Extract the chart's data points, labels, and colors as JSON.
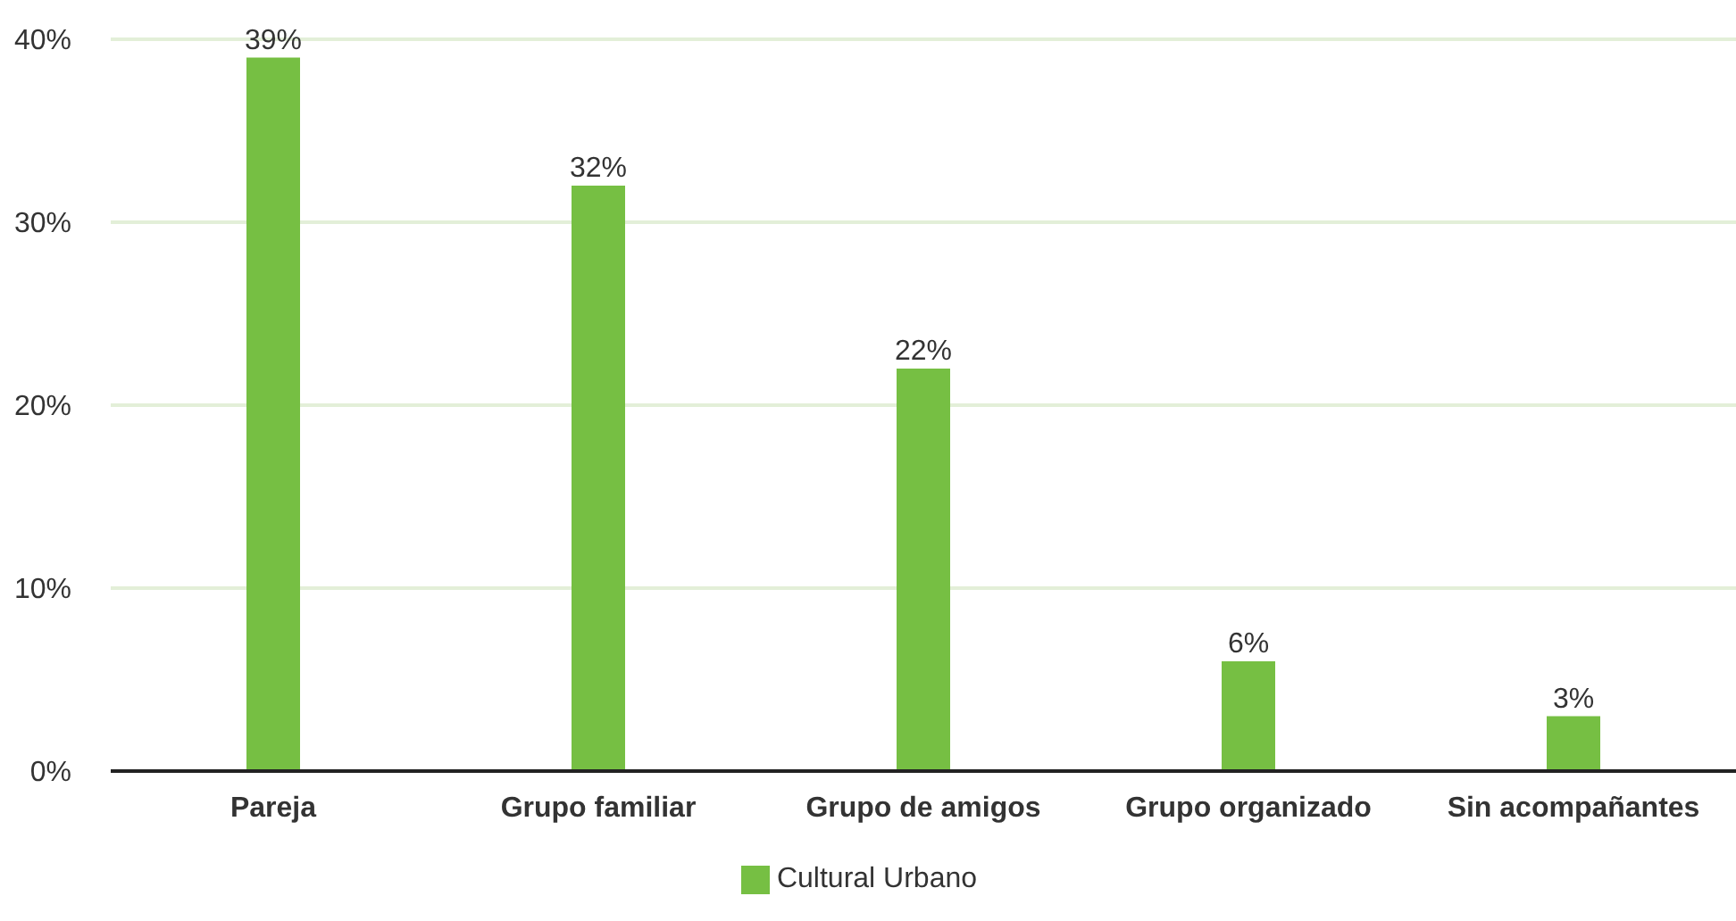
{
  "chart_data": {
    "type": "bar",
    "categories": [
      "Pareja",
      "Grupo familiar",
      "Grupo de amigos",
      "Grupo organizado",
      "Sin acompañantes"
    ],
    "series": [
      {
        "name": "Cultural Urbano",
        "color": "#76bf43",
        "values": [
          39,
          32,
          22,
          6,
          3
        ],
        "value_labels": [
          "39%",
          "32%",
          "22%",
          "6%",
          "3%"
        ]
      }
    ],
    "ylim": [
      0,
      40
    ],
    "yticks": [
      {
        "value": 0,
        "label": "0%"
      },
      {
        "value": 10,
        "label": "10%"
      },
      {
        "value": 20,
        "label": "20%"
      },
      {
        "value": 30,
        "label": "30%"
      },
      {
        "value": 40,
        "label": "40%"
      }
    ],
    "grid": "y",
    "legend": "bottom"
  }
}
